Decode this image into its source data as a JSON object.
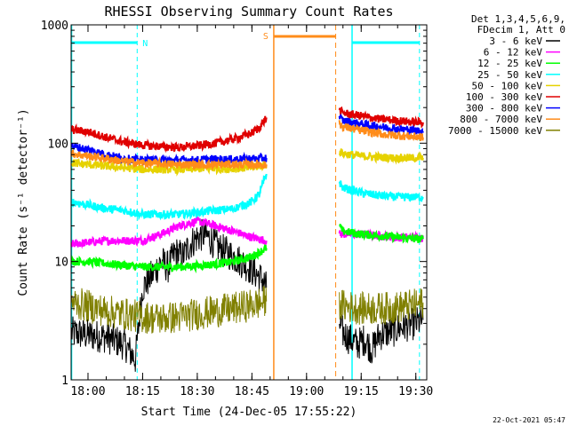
{
  "chart_data": {
    "type": "line",
    "title": "RHESSI Observing Summary Count Rates",
    "xlabel": "Start Time (24-Dec-05 17:55:22)",
    "ylabel": "Count Rate (s⁻¹ detector⁻¹)",
    "yscale": "log",
    "ylim": [
      1,
      1000
    ],
    "xlim": [
      "17:55:22",
      "19:33:00"
    ],
    "x_ticks": [
      "18:00",
      "18:15",
      "18:30",
      "18:45",
      "19:00",
      "19:15",
      "19:30"
    ],
    "y_ticks": [
      "1",
      "10",
      "100",
      "1000"
    ],
    "legend": {
      "header": [
        "Det 1,3,4,5,6,9,",
        "FDecim 1, Att 0"
      ],
      "placement": "right",
      "entries": [
        {
          "label": "3 - 6 keV",
          "color": "#000000"
        },
        {
          "label": "6 - 12 keV",
          "color": "#ff00ff"
        },
        {
          "label": "12 - 25 keV",
          "color": "#00ff00"
        },
        {
          "label": "25 - 50 keV",
          "color": "#00ffff"
        },
        {
          "label": "50 - 100 keV",
          "color": "#e6d200"
        },
        {
          "label": "100 - 300 keV",
          "color": "#e00000"
        },
        {
          "label": "300 - 800 keV",
          "color": "#0000ff"
        },
        {
          "label": "800 - 7000 keV",
          "color": "#ff8c1a"
        },
        {
          "label": "7000 - 15000 keV",
          "color": "#808000"
        }
      ]
    },
    "annotations": {
      "night_label": "N",
      "saa_label": "S",
      "night_start": "17:55:30",
      "night_end": "18:13:30",
      "saa_start": "18:51:00",
      "saa_end": "19:08:00",
      "night2_start": "19:12:30",
      "night2_end": "19:31:00",
      "night_color": "#00ffff",
      "saa_color": "#ff8c1a"
    },
    "series": [
      {
        "name": "3 - 6 keV",
        "color": "#000000",
        "segments": [
          {
            "x": [
              "17:55:30",
              "18:00",
              "18:05",
              "18:10",
              "18:13",
              "18:14",
              "18:15",
              "18:18",
              "18:20",
              "18:22",
              "18:24",
              "18:26",
              "18:28",
              "18:30",
              "18:32",
              "18:34",
              "18:36",
              "18:38",
              "18:40",
              "18:42",
              "18:44",
              "18:46",
              "18:48",
              "18:49"
            ],
            "y": [
              2.5,
              2.4,
              2.3,
              2.0,
              1.5,
              3,
              6,
              8,
              10,
              9,
              12,
              11,
              14,
              16,
              17,
              15,
              13,
              12,
              11,
              10,
              9,
              8,
              7,
              6
            ]
          },
          {
            "x": [
              "19:09",
              "19:10",
              "19:12",
              "19:14",
              "19:16",
              "19:18",
              "19:20",
              "19:22",
              "19:24",
              "19:26",
              "19:28",
              "19:30",
              "19:32"
            ],
            "y": [
              3,
              2.5,
              2.2,
              2,
              2.2,
              1.8,
              2.4,
              2.5,
              2.6,
              2.8,
              2.9,
              3.0,
              3.2
            ]
          }
        ]
      },
      {
        "name": "6 - 12 keV",
        "color": "#ff00ff",
        "segments": [
          {
            "x": [
              "17:55:30",
              "18:00",
              "18:05",
              "18:10",
              "18:15",
              "18:20",
              "18:25",
              "18:30",
              "18:35",
              "18:40",
              "18:45",
              "18:49"
            ],
            "y": [
              14,
              14.5,
              15,
              15,
              15,
              17,
              20,
              22,
              20,
              18,
              16,
              15
            ]
          },
          {
            "x": [
              "19:09",
              "19:10",
              "19:15",
              "19:20",
              "19:25",
              "19:30",
              "19:32"
            ],
            "y": [
              17,
              17,
              17,
              16.5,
              16,
              16,
              16
            ]
          }
        ]
      },
      {
        "name": "12 - 25 keV",
        "color": "#00ff00",
        "segments": [
          {
            "x": [
              "17:55:30",
              "18:00",
              "18:05",
              "18:10",
              "18:15",
              "18:20",
              "18:25",
              "18:30",
              "18:35",
              "18:40",
              "18:45",
              "18:49"
            ],
            "y": [
              10,
              10,
              9.6,
              9.3,
              9,
              9,
              9,
              9.2,
              9.5,
              10,
              11,
              13
            ]
          },
          {
            "x": [
              "19:09",
              "19:10",
              "19:15",
              "19:20",
              "19:25",
              "19:30",
              "19:32"
            ],
            "y": [
              20,
              18,
              17,
              16.5,
              16,
              15.5,
              15.5
            ]
          }
        ]
      },
      {
        "name": "25 - 50 keV",
        "color": "#00ffff",
        "segments": [
          {
            "x": [
              "17:55:30",
              "18:00",
              "18:05",
              "18:10",
              "18:15",
              "18:20",
              "18:25",
              "18:30",
              "18:35",
              "18:40",
              "18:45",
              "18:47",
              "18:49"
            ],
            "y": [
              32,
              30,
              28,
              27,
              25,
              25,
              25,
              26,
              27,
              28,
              32,
              37,
              55
            ]
          },
          {
            "x": [
              "19:09",
              "19:10",
              "19:15",
              "19:20",
              "19:25",
              "19:30",
              "19:32"
            ],
            "y": [
              47,
              42,
              38,
              36,
              35,
              35,
              35
            ]
          }
        ]
      },
      {
        "name": "50 - 100 keV",
        "color": "#e6d200",
        "segments": [
          {
            "x": [
              "17:55:30",
              "18:00",
              "18:05",
              "18:10",
              "18:15",
              "18:20",
              "18:25",
              "18:30",
              "18:35",
              "18:40",
              "18:45",
              "18:49"
            ],
            "y": [
              68,
              66,
              64,
              62,
              60,
              60,
              60,
              61,
              61,
              61,
              62,
              66
            ]
          },
          {
            "x": [
              "19:09",
              "19:10",
              "19:15",
              "19:20",
              "19:25",
              "19:30",
              "19:32"
            ],
            "y": [
              85,
              82,
              78,
              76,
              75,
              75,
              75
            ]
          }
        ]
      },
      {
        "name": "100 - 300 keV",
        "color": "#e00000",
        "segments": [
          {
            "x": [
              "17:55:30",
              "18:00",
              "18:05",
              "18:10",
              "18:15",
              "18:20",
              "18:25",
              "18:30",
              "18:35",
              "18:40",
              "18:45",
              "18:47",
              "18:49"
            ],
            "y": [
              130,
              125,
              112,
              102,
              96,
              94,
              92,
              95,
              100,
              108,
              122,
              135,
              165
            ]
          },
          {
            "x": [
              "19:09",
              "19:10",
              "19:15",
              "19:20",
              "19:25",
              "19:30",
              "19:32"
            ],
            "y": [
              190,
              180,
              170,
              160,
              155,
              150,
              150
            ]
          }
        ]
      },
      {
        "name": "300 - 800 keV",
        "color": "#0000ff",
        "segments": [
          {
            "x": [
              "17:55:30",
              "18:00",
              "18:05",
              "18:10",
              "18:15",
              "18:20",
              "18:25",
              "18:30",
              "18:35",
              "18:40",
              "18:45",
              "18:49"
            ],
            "y": [
              95,
              88,
              80,
              74,
              72,
              72,
              72,
              72,
              73,
              73,
              74,
              75
            ]
          },
          {
            "x": [
              "19:09",
              "19:10",
              "19:15",
              "19:20",
              "19:25",
              "19:30",
              "19:32"
            ],
            "y": [
              165,
              155,
              145,
              138,
              132,
              128,
              126
            ]
          }
        ]
      },
      {
        "name": "800 - 7000 keV",
        "color": "#ff8c1a",
        "segments": [
          {
            "x": [
              "17:55:30",
              "18:00",
              "18:05",
              "18:10",
              "18:15",
              "18:20",
              "18:25",
              "18:30",
              "18:35",
              "18:40",
              "18:45",
              "18:49"
            ],
            "y": [
              82,
              78,
              74,
              70,
              68,
              67,
              66,
              66,
              66,
              66,
              66,
              66
            ]
          },
          {
            "x": [
              "19:09",
              "19:10",
              "19:15",
              "19:20",
              "19:25",
              "19:30",
              "19:32"
            ],
            "y": [
              145,
              138,
              128,
              120,
              116,
              113,
              112
            ]
          }
        ]
      },
      {
        "name": "7000 - 15000 keV",
        "color": "#808000",
        "segments": [
          {
            "x": [
              "17:55:30",
              "18:00",
              "18:05",
              "18:10",
              "18:15",
              "18:20",
              "18:25",
              "18:30",
              "18:35",
              "18:40",
              "18:45",
              "18:49"
            ],
            "y": [
              4.5,
              4.2,
              3.8,
              3.6,
              3.4,
              3.3,
              3.4,
              3.6,
              3.8,
              4.0,
              4.3,
              4.6
            ]
          },
          {
            "x": [
              "19:09",
              "19:10",
              "19:15",
              "19:20",
              "19:25",
              "19:30",
              "19:32"
            ],
            "y": [
              4.5,
              4.2,
              4.0,
              4.0,
              4.1,
              4.3,
              4.5
            ]
          }
        ]
      }
    ]
  },
  "footer_timestamp": "22-Oct-2021 05:47"
}
